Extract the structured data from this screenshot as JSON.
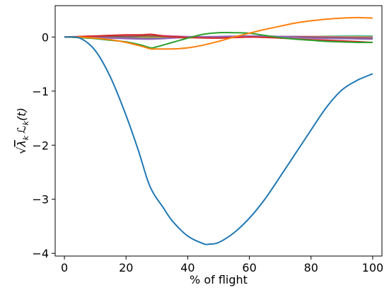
{
  "chart_data": {
    "type": "line",
    "title": "",
    "xlabel": "% of flight",
    "ylabel": "√λₖ ℒₖ(t)",
    "ylabel_parts": {
      "root": "√",
      "lambda": "λ",
      "k1": "k",
      "L": "ℒ",
      "k2": "k",
      "tail": "(t)"
    },
    "xlim": [
      -3,
      103
    ],
    "ylim": [
      -4.05,
      0.58
    ],
    "xticks": [
      0,
      20,
      40,
      60,
      80,
      100
    ],
    "xtick_labels": [
      "0",
      "20",
      "40",
      "60",
      "80",
      "100"
    ],
    "yticks": [
      0,
      -1,
      -2,
      -3,
      -4
    ],
    "ytick_labels": [
      "0",
      "−1",
      "−2",
      "−3",
      "−4"
    ],
    "grid": false,
    "series": [
      {
        "color": "#1f77b4",
        "x": [
          0,
          5,
          10,
          15,
          20,
          24,
          27,
          29,
          32,
          35,
          40,
          45,
          47,
          50,
          55,
          60,
          65,
          70,
          75,
          80,
          85,
          90,
          95,
          100
        ],
        "y": [
          0,
          -0.02,
          -0.25,
          -0.75,
          -1.45,
          -2.1,
          -2.65,
          -2.9,
          -3.15,
          -3.4,
          -3.68,
          -3.82,
          -3.83,
          -3.8,
          -3.62,
          -3.35,
          -3.0,
          -2.58,
          -2.15,
          -1.72,
          -1.3,
          -0.98,
          -0.8,
          -0.68
        ]
      },
      {
        "color": "#ff7f0e",
        "x": [
          0,
          5,
          10,
          15,
          20,
          25,
          28,
          30,
          35,
          40,
          45,
          50,
          55,
          60,
          65,
          70,
          75,
          80,
          85,
          90,
          95,
          100
        ],
        "y": [
          0,
          0.0,
          -0.02,
          -0.05,
          -0.1,
          -0.17,
          -0.22,
          -0.22,
          -0.22,
          -0.2,
          -0.15,
          -0.08,
          0.0,
          0.07,
          0.14,
          0.2,
          0.26,
          0.3,
          0.33,
          0.35,
          0.36,
          0.35
        ]
      },
      {
        "color": "#2ca02c",
        "x": [
          0,
          5,
          10,
          15,
          20,
          25,
          28,
          30,
          35,
          40,
          45,
          50,
          55,
          60,
          65,
          70,
          75,
          80,
          85,
          90,
          95,
          100
        ],
        "y": [
          0,
          -0.01,
          -0.03,
          -0.06,
          -0.09,
          -0.15,
          -0.2,
          -0.18,
          -0.1,
          -0.02,
          0.05,
          0.08,
          0.08,
          0.07,
          0.03,
          -0.01,
          -0.04,
          -0.06,
          -0.08,
          -0.09,
          -0.1,
          -0.1
        ]
      },
      {
        "color": "#d62728",
        "x": [
          0,
          10,
          20,
          25,
          28,
          32,
          36,
          40,
          50,
          60,
          70,
          80,
          90,
          100
        ],
        "y": [
          0,
          0.02,
          0.04,
          0.04,
          0.05,
          0.02,
          0.0,
          -0.01,
          -0.02,
          0.0,
          -0.02,
          -0.05,
          -0.07,
          -0.1
        ]
      },
      {
        "color": "#9467bd",
        "x": [
          0,
          10,
          20,
          28,
          35,
          40,
          50,
          60,
          70,
          80,
          90,
          100
        ],
        "y": [
          0,
          -0.01,
          -0.03,
          -0.04,
          -0.02,
          0.0,
          0.01,
          0.02,
          0.01,
          -0.02,
          -0.03,
          -0.04
        ]
      },
      {
        "color": "#8c564b",
        "x": [
          0,
          10,
          20,
          28,
          40,
          50,
          60,
          70,
          80,
          90,
          100
        ],
        "y": [
          0,
          0.01,
          0.01,
          0.02,
          0.0,
          -0.01,
          0.0,
          0.01,
          0.0,
          -0.01,
          -0.02
        ]
      },
      {
        "color": "#e377c2",
        "x": [
          0,
          10,
          20,
          28,
          40,
          50,
          60,
          70,
          80,
          90,
          100
        ],
        "y": [
          0,
          0.0,
          0.02,
          0.03,
          0.01,
          0.0,
          0.0,
          0.01,
          0.01,
          0.0,
          -0.01
        ]
      },
      {
        "color": "#7f7f7f",
        "x": [
          0,
          10,
          20,
          28,
          40,
          50,
          60,
          70,
          80,
          90,
          100
        ],
        "y": [
          0,
          0.0,
          -0.01,
          -0.02,
          -0.01,
          0.0,
          0.01,
          0.0,
          -0.01,
          -0.01,
          0.0
        ]
      },
      {
        "color": "#bcbd22",
        "x": [
          0,
          10,
          20,
          28,
          40,
          50,
          60,
          70,
          80,
          90,
          100
        ],
        "y": [
          0,
          0.0,
          0.01,
          0.0,
          -0.01,
          0.0,
          0.0,
          0.0,
          0.01,
          0.01,
          0.01
        ]
      },
      {
        "color": "#17becf",
        "x": [
          0,
          10,
          20,
          28,
          40,
          50,
          60,
          70,
          80,
          90,
          100
        ],
        "y": [
          0,
          0.0,
          0.0,
          0.01,
          0.0,
          0.0,
          0.01,
          0.01,
          0.01,
          0.02,
          0.02
        ]
      }
    ]
  }
}
